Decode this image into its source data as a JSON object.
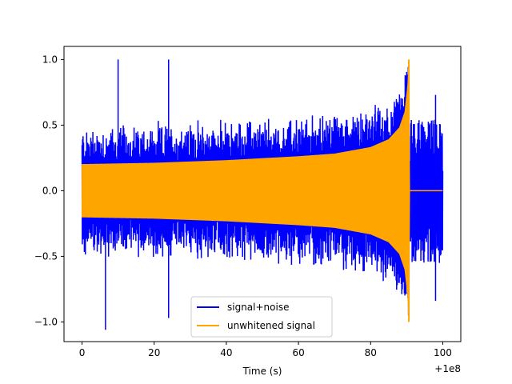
{
  "chart_data": {
    "type": "line",
    "title": "",
    "xlabel": "Time (s)",
    "ylabel": "",
    "x_offset_label": "+1e8",
    "xlim": [
      -5,
      105
    ],
    "ylim": [
      -1.15,
      1.1
    ],
    "x_ticks": [
      0,
      20,
      40,
      60,
      80,
      100
    ],
    "y_ticks": [
      -1.0,
      -0.5,
      0.0,
      0.5,
      1.0
    ],
    "x_tick_labels": [
      "0",
      "20",
      "40",
      "60",
      "80",
      "100"
    ],
    "y_tick_labels": [
      "−1.0",
      "−0.5",
      "0.0",
      "0.5",
      "1.0"
    ],
    "grid": false,
    "legend_position": "lower-center",
    "series": [
      {
        "name": "signal+noise",
        "color": "#0000ff",
        "x_range": [
          0,
          100
        ],
        "base_envelope": [
          [
            0,
            0.2
          ],
          [
            20,
            0.21
          ],
          [
            40,
            0.23
          ],
          [
            60,
            0.26
          ],
          [
            80,
            0.33
          ],
          [
            86,
            0.4
          ],
          [
            89,
            0.55
          ],
          [
            90.5,
            0.7
          ],
          [
            91,
            0.0
          ],
          [
            100,
            0.0
          ]
        ],
        "noise_amplitude": 0.3,
        "peaks": [
          [
            10,
            1.0
          ],
          [
            6.5,
            -1.06
          ],
          [
            24,
            1.0
          ],
          [
            24,
            -0.97
          ],
          [
            90.5,
            0.95
          ],
          [
            90.5,
            -0.95
          ],
          [
            98,
            0.73
          ],
          [
            98,
            -0.84
          ]
        ]
      },
      {
        "name": "unwhitened signal",
        "color": "#ffa500",
        "x_range": [
          0,
          100
        ],
        "envelope": [
          [
            0,
            0.2
          ],
          [
            20,
            0.21
          ],
          [
            40,
            0.23
          ],
          [
            60,
            0.26
          ],
          [
            70,
            0.28
          ],
          [
            80,
            0.33
          ],
          [
            85,
            0.39
          ],
          [
            88,
            0.48
          ],
          [
            89.5,
            0.6
          ],
          [
            90.3,
            0.8
          ],
          [
            90.6,
            1.0
          ],
          [
            90.8,
            0.0
          ],
          [
            100,
            0.0
          ]
        ],
        "peak_max": 1.0,
        "peak_min": -1.0,
        "peak_x": 90.6
      }
    ]
  }
}
